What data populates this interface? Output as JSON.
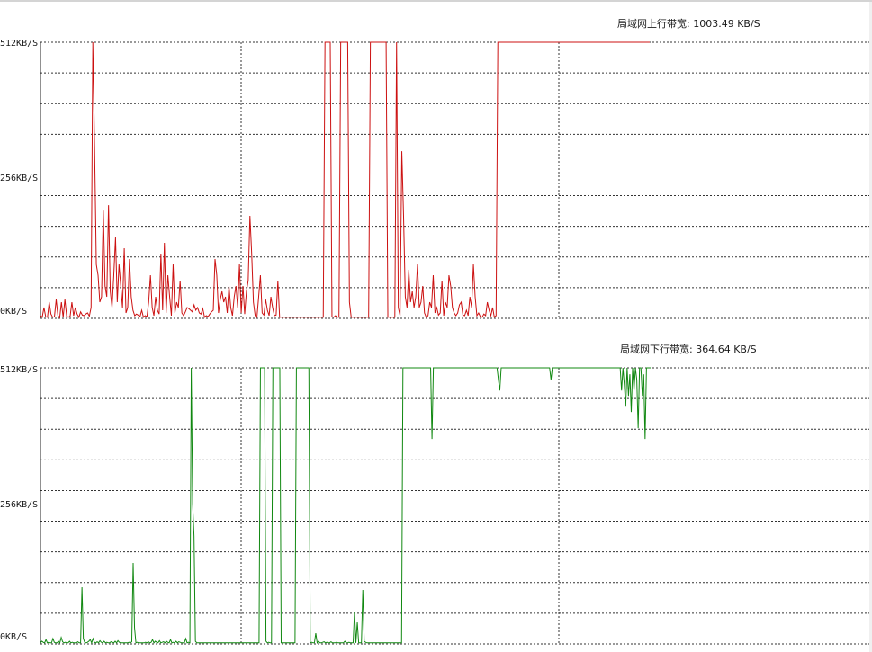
{
  "colors": {
    "upload_line": "#cc1111",
    "download_line": "#118811",
    "grid": "#333333",
    "axis": "#222222"
  },
  "upload": {
    "title_label": "局域网上行带宽:",
    "title_value": "1003.49 KB/S",
    "y_labels": [
      "512KB/S",
      "256KB/S",
      "0KB/S"
    ]
  },
  "download": {
    "title_label": "局域网下行带宽:",
    "title_value": "364.64 KB/S",
    "y_labels": [
      "512KB/S",
      "256KB/S",
      "0KB/S"
    ]
  },
  "chart_data": [
    {
      "type": "line",
      "title": "局域网上行带宽: 1003.49 KB/S",
      "ylabel": "",
      "ylim": [
        0,
        512
      ],
      "y_ticks": [
        "0KB/S",
        "256KB/S",
        "512KB/S"
      ],
      "grid": true,
      "series": [
        {
          "values": [
            5,
            2,
            20,
            3,
            2,
            30,
            8,
            2,
            3,
            35,
            5,
            1,
            30,
            2,
            35,
            4,
            2,
            4,
            30,
            5,
            20,
            8,
            2,
            12,
            6,
            5,
            8,
            10,
            4,
            20,
            512,
            320,
            100,
            80,
            30,
            40,
            200,
            60,
            40,
            210,
            50,
            20,
            80,
            150,
            30,
            100,
            60,
            20,
            130,
            10,
            20,
            110,
            40,
            15,
            5,
            8,
            6,
            3,
            15,
            2,
            5,
            3,
            30,
            80,
            20,
            5,
            40,
            15,
            8,
            120,
            15,
            140,
            10,
            80,
            40,
            5,
            100,
            10,
            30,
            20,
            70,
            10,
            5,
            12,
            20,
            18,
            15,
            12,
            25,
            15,
            20,
            10,
            8,
            18,
            2,
            5,
            3,
            8,
            12,
            15,
            110,
            80,
            10,
            35,
            50,
            30,
            40,
            10,
            60,
            20,
            5,
            40,
            60,
            20,
            100,
            10,
            60,
            8,
            50,
            70,
            190,
            120,
            30,
            5,
            2,
            40,
            80,
            10,
            6,
            35,
            15,
            5,
            40,
            20,
            5,
            6,
            70,
            2,
            2,
            2,
            2,
            2,
            2,
            2,
            2,
            2,
            2,
            2,
            2,
            2,
            2,
            2,
            2,
            2,
            2,
            2,
            2,
            2,
            2,
            2,
            2,
            2,
            2,
            512,
            512,
            512,
            512,
            3,
            2,
            5,
            2,
            2,
            512,
            512,
            512,
            512,
            512,
            30,
            2,
            2,
            2,
            2,
            2,
            2,
            2,
            2,
            2,
            2,
            2,
            512,
            512,
            512,
            512,
            512,
            512,
            512,
            512,
            512,
            512,
            2,
            2,
            2,
            2,
            2,
            512,
            20,
            5,
            310,
            190,
            40,
            20,
            90,
            30,
            50,
            20,
            40,
            100,
            20,
            30,
            60,
            10,
            2,
            5,
            30,
            20,
            80,
            10,
            20,
            6,
            10,
            70,
            5,
            30,
            20,
            80,
            60,
            20,
            10,
            5,
            10,
            25,
            30,
            6,
            5,
            15,
            5,
            40,
            20,
            100,
            40,
            5,
            10,
            3,
            2,
            8,
            5,
            30,
            15,
            5,
            20,
            2,
            5,
            512,
            512,
            512,
            512,
            512,
            512,
            512,
            512,
            512,
            512,
            512,
            512,
            512,
            512,
            512,
            512,
            512,
            512,
            512,
            512,
            512,
            512,
            512,
            512,
            512,
            512,
            512,
            512,
            512,
            512,
            512,
            512,
            512,
            512,
            512,
            512,
            512,
            512,
            512,
            512,
            512,
            512,
            512,
            512,
            512,
            512,
            512,
            512,
            512,
            512,
            512,
            512,
            512,
            512,
            512,
            512,
            512,
            512,
            512,
            512,
            512,
            512,
            512,
            512,
            512,
            512,
            512,
            512,
            512,
            512,
            512,
            512,
            512,
            512,
            512,
            512,
            512,
            512,
            512,
            512,
            512,
            512,
            512,
            512,
            512,
            512,
            512,
            512
          ]
        }
      ]
    },
    {
      "type": "line",
      "title": "局域网下行带宽: 364.64 KB/S",
      "ylabel": "",
      "ylim": [
        0,
        512
      ],
      "y_ticks": [
        "0KB/S",
        "256KB/S",
        "512KB/S"
      ],
      "grid": true,
      "series": [
        {
          "values": [
            2,
            5,
            3,
            2,
            8,
            2,
            3,
            2,
            2,
            10,
            3,
            2,
            2,
            5,
            2,
            12,
            4,
            2,
            3,
            2,
            2,
            5,
            2,
            3,
            2,
            2,
            2,
            4,
            2,
            2,
            105,
            10,
            3,
            2,
            3,
            5,
            8,
            2,
            10,
            3,
            2,
            4,
            2,
            6,
            3,
            2,
            5,
            2,
            3,
            2,
            2,
            4,
            3,
            2,
            5,
            2,
            6,
            3,
            2,
            2,
            2,
            2,
            2,
            2,
            3,
            2,
            4,
            150,
            30,
            2,
            3,
            2,
            2,
            2,
            2,
            2,
            3,
            2,
            4,
            2,
            3,
            8,
            2,
            5,
            3,
            2,
            6,
            2,
            3,
            4,
            2,
            5,
            3,
            2,
            8,
            2,
            3,
            2,
            5,
            2,
            4,
            3,
            2,
            2,
            2,
            10,
            2,
            3,
            2,
            512,
            260,
            200,
            5,
            2,
            2,
            2,
            2,
            2,
            2,
            2,
            2,
            2,
            2,
            2,
            2,
            2,
            2,
            2,
            2,
            2,
            2,
            2,
            2,
            2,
            2,
            2,
            2,
            2,
            2,
            2,
            2,
            2,
            2,
            2,
            2,
            2,
            2,
            2,
            2,
            2,
            2,
            2,
            2,
            2,
            2,
            2,
            2,
            2,
            2,
            512,
            512,
            512,
            512,
            5,
            2,
            3,
            2,
            2,
            512,
            512,
            512,
            512,
            512,
            512,
            2,
            2,
            2,
            2,
            2,
            2,
            2,
            2,
            2,
            2,
            2,
            512,
            512,
            512,
            512,
            512,
            512,
            512,
            512,
            512,
            512,
            2,
            3,
            2,
            2,
            20,
            2,
            5,
            2,
            2,
            3,
            4,
            2,
            3,
            2,
            2,
            4,
            2,
            2,
            2,
            3,
            2,
            2,
            2,
            2,
            2,
            5,
            2,
            2,
            3,
            2,
            2,
            2,
            60,
            2,
            40,
            2,
            2,
            2,
            100,
            5,
            3,
            2,
            2,
            2,
            2,
            2,
            2,
            2,
            2,
            2,
            2,
            2,
            2,
            2,
            2,
            2,
            2,
            2,
            2,
            2,
            2,
            2,
            2,
            2,
            2,
            2,
            2,
            512,
            512,
            512,
            512,
            512,
            512,
            512,
            512,
            512,
            512,
            512,
            512,
            512,
            512,
            512,
            512,
            512,
            512,
            512,
            512,
            512,
            380,
            512,
            512,
            512,
            512,
            512,
            512,
            512,
            512,
            512,
            512,
            512,
            512,
            512,
            512,
            512,
            512,
            512,
            512,
            512,
            512,
            512,
            512,
            512,
            512,
            512,
            512,
            512,
            512,
            512,
            512,
            512,
            512,
            512,
            512,
            512,
            512,
            512,
            512,
            512,
            512,
            512,
            512,
            512,
            512,
            512,
            512,
            512,
            490,
            470,
            512,
            512,
            512,
            512,
            512,
            512,
            512,
            512,
            512,
            512,
            512,
            512,
            512,
            512,
            512,
            512,
            512,
            512,
            512,
            512,
            512,
            512,
            512,
            512,
            512,
            512,
            512,
            512,
            512,
            512,
            512,
            512,
            512,
            512,
            512,
            512,
            490,
            512,
            512,
            512,
            512,
            512,
            512,
            512,
            512,
            512,
            512,
            512,
            512,
            512,
            512,
            512,
            512,
            512,
            512,
            512,
            512,
            512,
            512,
            512,
            512,
            512,
            512,
            512,
            512,
            512,
            512,
            512,
            512,
            512,
            512,
            512,
            512,
            512,
            512,
            512,
            512,
            512,
            512,
            512,
            512,
            512,
            512,
            512,
            512,
            512,
            512,
            470,
            512,
            480,
            440,
            512,
            460,
            500,
            430,
            512,
            470,
            512,
            490,
            400,
            512,
            512,
            460,
            500,
            380,
            512,
            512,
            512,
            512
          ]
        }
      ]
    }
  ]
}
